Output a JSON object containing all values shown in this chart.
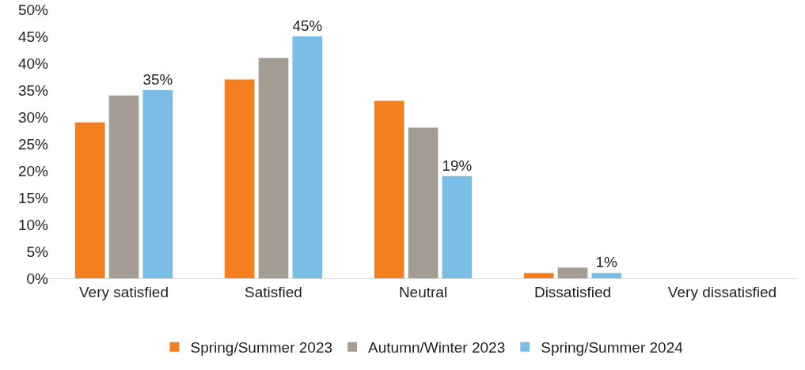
{
  "chart_data": {
    "type": "bar",
    "categories": [
      "Very satisfied",
      "Satisfied",
      "Neutral",
      "Dissatisfied",
      "Very dissatisfied"
    ],
    "series": [
      {
        "name": "Spring/Summer 2023",
        "color": "#f47f20",
        "values": [
          29,
          37,
          33,
          1,
          0
        ]
      },
      {
        "name": "Autumn/Winter 2023",
        "color": "#a59c94",
        "values": [
          34,
          41,
          28,
          2,
          0
        ]
      },
      {
        "name": "Spring/Summer 2024",
        "color": "#7abde6",
        "values": [
          35,
          45,
          19,
          1,
          0
        ],
        "value_labels": [
          "35%",
          "45%",
          "19%",
          "1%",
          null
        ]
      }
    ],
    "ylim": [
      0,
      50
    ],
    "yticks": [
      {
        "value": 0,
        "label": "0%"
      },
      {
        "value": 5,
        "label": "5%"
      },
      {
        "value": 10,
        "label": "10%"
      },
      {
        "value": 15,
        "label": "15%"
      },
      {
        "value": 20,
        "label": "20%"
      },
      {
        "value": 25,
        "label": "25%"
      },
      {
        "value": 30,
        "label": "30%"
      },
      {
        "value": 35,
        "label": "35%"
      },
      {
        "value": 40,
        "label": "40%"
      },
      {
        "value": 45,
        "label": "45%"
      },
      {
        "value": 50,
        "label": "50%"
      }
    ],
    "grid": false,
    "legend": "bottom"
  }
}
